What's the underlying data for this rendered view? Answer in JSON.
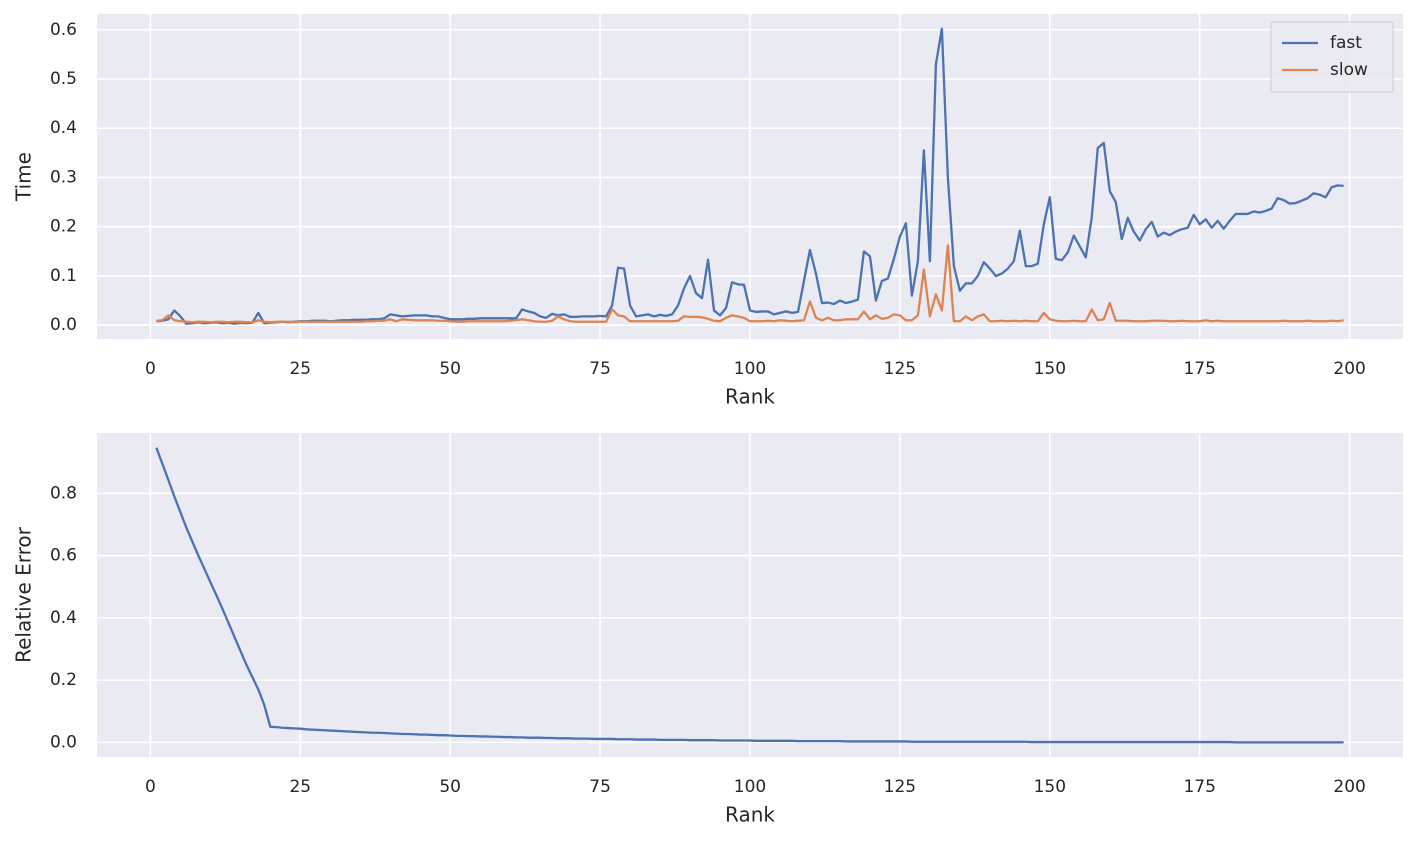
{
  "chart_data": [
    {
      "type": "line",
      "xlabel": "Rank",
      "ylabel": "Time",
      "x": [
        1,
        2,
        3,
        4,
        5,
        6,
        7,
        8,
        9,
        10,
        11,
        12,
        13,
        14,
        15,
        16,
        17,
        18,
        19,
        20,
        21,
        22,
        23,
        24,
        25,
        26,
        27,
        28,
        29,
        30,
        31,
        32,
        33,
        34,
        35,
        36,
        37,
        38,
        39,
        40,
        41,
        42,
        43,
        44,
        45,
        46,
        47,
        48,
        49,
        50,
        51,
        52,
        53,
        54,
        55,
        56,
        57,
        58,
        59,
        60,
        61,
        62,
        63,
        64,
        65,
        66,
        67,
        68,
        69,
        70,
        71,
        72,
        73,
        74,
        75,
        76,
        77,
        78,
        79,
        80,
        81,
        82,
        83,
        84,
        85,
        86,
        87,
        88,
        89,
        90,
        91,
        92,
        93,
        94,
        95,
        96,
        97,
        98,
        99,
        100,
        101,
        102,
        103,
        104,
        105,
        106,
        107,
        108,
        109,
        110,
        111,
        112,
        113,
        114,
        115,
        116,
        117,
        118,
        119,
        120,
        121,
        122,
        123,
        124,
        125,
        126,
        127,
        128,
        129,
        130,
        131,
        132,
        133,
        134,
        135,
        136,
        137,
        138,
        139,
        140,
        141,
        142,
        143,
        144,
        145,
        146,
        147,
        148,
        149,
        150,
        151,
        152,
        153,
        154,
        155,
        156,
        157,
        158,
        159,
        160,
        161,
        162,
        163,
        164,
        165,
        166,
        167,
        168,
        169,
        170,
        171,
        172,
        173,
        174,
        175,
        176,
        177,
        178,
        179,
        180,
        181,
        182,
        183,
        184,
        185,
        186,
        187,
        188,
        189,
        190,
        191,
        192,
        193,
        194,
        195,
        196,
        197,
        198,
        199
      ],
      "series": [
        {
          "name": "fast",
          "color": "#4c72b0",
          "values": [
            0.008,
            0.009,
            0.012,
            0.03,
            0.018,
            0.003,
            0.004,
            0.006,
            0.004,
            0.005,
            0.006,
            0.004,
            0.005,
            0.003,
            0.005,
            0.004,
            0.005,
            0.025,
            0.004,
            0.005,
            0.006,
            0.007,
            0.006,
            0.007,
            0.008,
            0.008,
            0.009,
            0.009,
            0.009,
            0.008,
            0.009,
            0.01,
            0.01,
            0.011,
            0.011,
            0.011,
            0.012,
            0.012,
            0.014,
            0.022,
            0.02,
            0.018,
            0.019,
            0.02,
            0.02,
            0.02,
            0.018,
            0.018,
            0.015,
            0.012,
            0.012,
            0.012,
            0.013,
            0.013,
            0.014,
            0.014,
            0.014,
            0.014,
            0.014,
            0.014,
            0.014,
            0.032,
            0.028,
            0.025,
            0.018,
            0.015,
            0.023,
            0.02,
            0.022,
            0.017,
            0.017,
            0.018,
            0.018,
            0.018,
            0.019,
            0.018,
            0.04,
            0.117,
            0.115,
            0.04,
            0.018,
            0.02,
            0.022,
            0.018,
            0.021,
            0.019,
            0.022,
            0.04,
            0.075,
            0.1,
            0.065,
            0.055,
            0.133,
            0.03,
            0.02,
            0.035,
            0.087,
            0.083,
            0.082,
            0.03,
            0.027,
            0.028,
            0.028,
            0.022,
            0.025,
            0.028,
            0.025,
            0.027,
            0.09,
            0.153,
            0.105,
            0.045,
            0.046,
            0.043,
            0.05,
            0.045,
            0.048,
            0.052,
            0.15,
            0.14,
            0.05,
            0.09,
            0.095,
            0.135,
            0.18,
            0.207,
            0.06,
            0.13,
            0.355,
            0.13,
            0.53,
            0.602,
            0.3,
            0.12,
            0.07,
            0.085,
            0.085,
            0.1,
            0.128,
            0.115,
            0.1,
            0.105,
            0.115,
            0.13,
            0.192,
            0.12,
            0.12,
            0.125,
            0.205,
            0.26,
            0.135,
            0.132,
            0.148,
            0.182,
            0.16,
            0.138,
            0.22,
            0.36,
            0.37,
            0.272,
            0.25,
            0.175,
            0.218,
            0.19,
            0.172,
            0.195,
            0.21,
            0.18,
            0.188,
            0.183,
            0.19,
            0.195,
            0.198,
            0.224,
            0.205,
            0.215,
            0.198,
            0.212,
            0.196,
            0.212,
            0.226,
            0.226,
            0.226,
            0.231,
            0.229,
            0.232,
            0.237,
            0.258,
            0.254,
            0.247,
            0.248,
            0.253,
            0.258,
            0.268,
            0.265,
            0.26,
            0.28,
            0.284,
            0.283
          ]
        },
        {
          "name": "slow",
          "color": "#dd8452",
          "values": [
            0.009,
            0.01,
            0.02,
            0.01,
            0.008,
            0.007,
            0.006,
            0.007,
            0.007,
            0.006,
            0.007,
            0.007,
            0.006,
            0.007,
            0.007,
            0.006,
            0.006,
            0.01,
            0.007,
            0.006,
            0.007,
            0.007,
            0.007,
            0.006,
            0.007,
            0.007,
            0.007,
            0.007,
            0.007,
            0.007,
            0.007,
            0.007,
            0.007,
            0.007,
            0.007,
            0.008,
            0.008,
            0.009,
            0.009,
            0.012,
            0.008,
            0.012,
            0.011,
            0.01,
            0.01,
            0.01,
            0.01,
            0.009,
            0.009,
            0.008,
            0.007,
            0.007,
            0.008,
            0.008,
            0.008,
            0.008,
            0.008,
            0.008,
            0.008,
            0.009,
            0.01,
            0.012,
            0.01,
            0.008,
            0.007,
            0.007,
            0.009,
            0.018,
            0.012,
            0.008,
            0.007,
            0.007,
            0.007,
            0.007,
            0.007,
            0.007,
            0.032,
            0.02,
            0.018,
            0.008,
            0.008,
            0.008,
            0.008,
            0.008,
            0.008,
            0.008,
            0.008,
            0.009,
            0.018,
            0.017,
            0.017,
            0.016,
            0.013,
            0.009,
            0.008,
            0.015,
            0.02,
            0.018,
            0.015,
            0.008,
            0.008,
            0.008,
            0.009,
            0.008,
            0.01,
            0.009,
            0.008,
            0.009,
            0.01,
            0.048,
            0.015,
            0.01,
            0.015,
            0.01,
            0.01,
            0.012,
            0.012,
            0.012,
            0.028,
            0.012,
            0.02,
            0.013,
            0.015,
            0.022,
            0.02,
            0.01,
            0.01,
            0.02,
            0.113,
            0.018,
            0.063,
            0.03,
            0.162,
            0.008,
            0.008,
            0.018,
            0.01,
            0.018,
            0.022,
            0.008,
            0.008,
            0.009,
            0.008,
            0.009,
            0.008,
            0.009,
            0.008,
            0.008,
            0.025,
            0.012,
            0.009,
            0.008,
            0.008,
            0.009,
            0.008,
            0.008,
            0.032,
            0.01,
            0.012,
            0.045,
            0.009,
            0.009,
            0.009,
            0.008,
            0.008,
            0.008,
            0.009,
            0.009,
            0.009,
            0.008,
            0.008,
            0.009,
            0.008,
            0.008,
            0.008,
            0.01,
            0.008,
            0.009,
            0.008,
            0.008,
            0.008,
            0.008,
            0.008,
            0.008,
            0.008,
            0.008,
            0.008,
            0.008,
            0.009,
            0.008,
            0.008,
            0.008,
            0.009,
            0.008,
            0.008,
            0.008,
            0.009,
            0.008,
            0.01
          ]
        }
      ],
      "xlim": [
        -8.9,
        208.9
      ],
      "xticks": [
        0,
        25,
        50,
        75,
        100,
        125,
        150,
        175,
        200
      ],
      "ylim": [
        -0.028,
        0.632
      ],
      "yticks": [
        {
          "value": 0,
          "label": "0.0"
        },
        {
          "value": 0.1,
          "label": "0.1"
        },
        {
          "value": 0.2,
          "label": "0.2"
        },
        {
          "value": 0.3,
          "label": "0.3"
        },
        {
          "value": 0.4,
          "label": "0.4"
        },
        {
          "value": 0.5,
          "label": "0.5"
        },
        {
          "value": 0.6,
          "label": "0.6"
        }
      ],
      "grid": true,
      "legend": "upper right"
    },
    {
      "type": "line",
      "xlabel": "Rank",
      "ylabel": "Relative Error",
      "x": [
        1,
        2,
        3,
        4,
        5,
        6,
        7,
        8,
        9,
        10,
        11,
        12,
        13,
        14,
        15,
        16,
        17,
        18,
        19,
        20,
        21,
        22,
        23,
        24,
        25,
        26,
        27,
        28,
        29,
        30,
        31,
        32,
        33,
        34,
        35,
        36,
        37,
        38,
        39,
        40,
        41,
        42,
        43,
        44,
        45,
        46,
        47,
        48,
        49,
        50,
        51,
        52,
        53,
        54,
        55,
        56,
        57,
        58,
        59,
        60,
        61,
        62,
        63,
        64,
        65,
        66,
        67,
        68,
        69,
        70,
        71,
        72,
        73,
        74,
        75,
        76,
        77,
        78,
        79,
        80,
        81,
        82,
        83,
        84,
        85,
        86,
        87,
        88,
        89,
        90,
        91,
        92,
        93,
        94,
        95,
        96,
        97,
        98,
        99,
        100,
        101,
        102,
        103,
        104,
        105,
        106,
        107,
        108,
        109,
        110,
        111,
        112,
        113,
        114,
        115,
        116,
        117,
        118,
        119,
        120,
        121,
        122,
        123,
        124,
        125,
        126,
        127,
        128,
        129,
        130,
        131,
        132,
        133,
        134,
        135,
        136,
        137,
        138,
        139,
        140,
        141,
        142,
        143,
        144,
        145,
        146,
        147,
        148,
        149,
        150,
        151,
        152,
        153,
        154,
        155,
        156,
        157,
        158,
        159,
        160,
        161,
        162,
        163,
        164,
        165,
        166,
        167,
        168,
        169,
        170,
        171,
        172,
        173,
        174,
        175,
        176,
        177,
        178,
        179,
        180,
        181,
        182,
        183,
        184,
        185,
        186,
        187,
        188,
        189,
        190,
        191,
        192,
        193,
        194,
        195,
        196,
        197,
        198,
        199
      ],
      "series": [
        {
          "color": "#4c72b0",
          "values": [
            0.947,
            0.895,
            0.843,
            0.79,
            0.74,
            0.69,
            0.645,
            0.6,
            0.558,
            0.515,
            0.473,
            0.43,
            0.385,
            0.34,
            0.295,
            0.25,
            0.21,
            0.17,
            0.12,
            0.05,
            0.049,
            0.047,
            0.046,
            0.045,
            0.044,
            0.042,
            0.041,
            0.04,
            0.039,
            0.038,
            0.037,
            0.036,
            0.035,
            0.034,
            0.033,
            0.032,
            0.031,
            0.031,
            0.03,
            0.029,
            0.028,
            0.027,
            0.027,
            0.026,
            0.025,
            0.025,
            0.024,
            0.023,
            0.023,
            0.022,
            0.021,
            0.021,
            0.02,
            0.02,
            0.019,
            0.019,
            0.018,
            0.018,
            0.017,
            0.017,
            0.016,
            0.016,
            0.015,
            0.015,
            0.015,
            0.014,
            0.014,
            0.013,
            0.013,
            0.013,
            0.012,
            0.012,
            0.012,
            0.011,
            0.011,
            0.011,
            0.011,
            0.01,
            0.01,
            0.01,
            0.009,
            0.009,
            0.009,
            0.009,
            0.008,
            0.008,
            0.008,
            0.008,
            0.008,
            0.007,
            0.007,
            0.007,
            0.007,
            0.007,
            0.006,
            0.006,
            0.006,
            0.006,
            0.006,
            0.006,
            0.005,
            0.005,
            0.005,
            0.005,
            0.005,
            0.005,
            0.005,
            0.004,
            0.004,
            0.004,
            0.004,
            0.004,
            0.004,
            0.004,
            0.004,
            0.003,
            0.003,
            0.003,
            0.003,
            0.003,
            0.003,
            0.003,
            0.003,
            0.003,
            0.003,
            0.003,
            0.002,
            0.002,
            0.002,
            0.002,
            0.002,
            0.002,
            0.002,
            0.002,
            0.002,
            0.002,
            0.002,
            0.002,
            0.002,
            0.002,
            0.002,
            0.002,
            0.002,
            0.002,
            0.002,
            0.002,
            0.001,
            0.001,
            0.001,
            0.001,
            0.001,
            0.001,
            0.001,
            0.001,
            0.001,
            0.001,
            0.001,
            0.001,
            0.001,
            0.001,
            0.001,
            0.001,
            0.001,
            0.001,
            0.001,
            0.001,
            0.001,
            0.001,
            0.001,
            0.001,
            0.001,
            0.001,
            0.001,
            0.001,
            0.001,
            0.001,
            0.001,
            0.001,
            0.001,
            0.001,
            0,
            0,
            0,
            0,
            0,
            0,
            0,
            0,
            0,
            0,
            0,
            0,
            0,
            0,
            0,
            0,
            0,
            0,
            0
          ]
        }
      ],
      "xlim": [
        -8.9,
        208.9
      ],
      "xticks": [
        0,
        25,
        50,
        75,
        100,
        125,
        150,
        175,
        200
      ],
      "ylim": [
        -0.047,
        0.994
      ],
      "yticks": [
        {
          "value": 0,
          "label": "0.0"
        },
        {
          "value": 0.2,
          "label": "0.2"
        },
        {
          "value": 0.4,
          "label": "0.4"
        },
        {
          "value": 0.6,
          "label": "0.6"
        },
        {
          "value": 0.8,
          "label": "0.8"
        }
      ],
      "grid": true
    }
  ]
}
